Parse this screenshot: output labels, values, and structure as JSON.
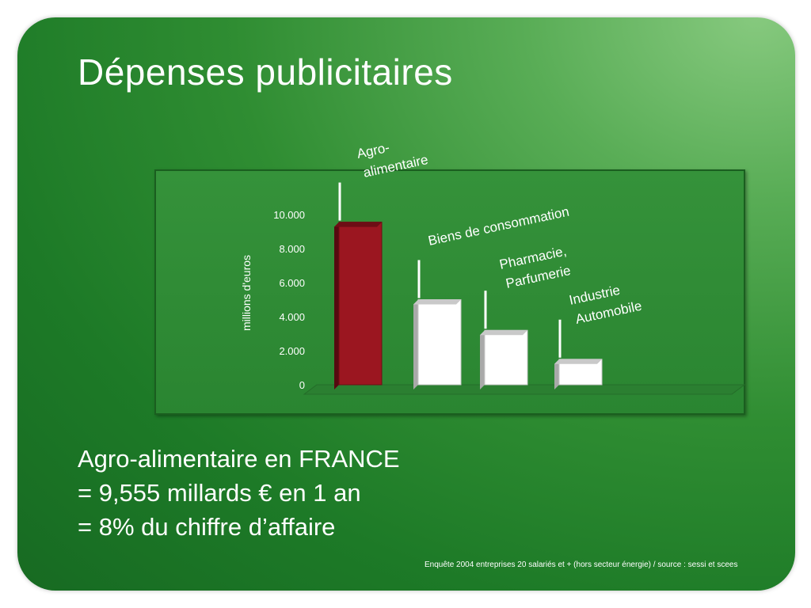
{
  "slide": {
    "title": "Dépenses publicitaires",
    "summary_lines": [
      "Agro-alimentaire en FRANCE",
      "= 9,555 millards € en 1 an",
      "= 8% du chiffre d’affaire"
    ],
    "source": "Enquête 2004 entreprises 20 salariés et + (hors secteur énergie) / source : sessi et scees"
  },
  "chart_data": {
    "type": "bar",
    "ylabel": "millions d'euros",
    "ylim": [
      0,
      10000
    ],
    "yticks": [
      0,
      2000,
      4000,
      6000,
      8000,
      10000
    ],
    "ytick_labels": [
      "0",
      "2.000",
      "4.000",
      "6.000",
      "8.000",
      "10.000"
    ],
    "categories": [
      {
        "lines": [
          "Agro-",
          "alimentaire"
        ]
      },
      {
        "lines": [
          "Biens de consommation"
        ]
      },
      {
        "lines": [
          "Pharmacie,",
          "Parfumerie"
        ]
      },
      {
        "lines": [
          "Industrie",
          "Automobile"
        ]
      }
    ],
    "values": [
      9555,
      5000,
      3200,
      1500
    ],
    "colors": [
      "#9b1620",
      "#ffffff",
      "#ffffff",
      "#ffffff"
    ],
    "grid": false,
    "legend": "none"
  }
}
